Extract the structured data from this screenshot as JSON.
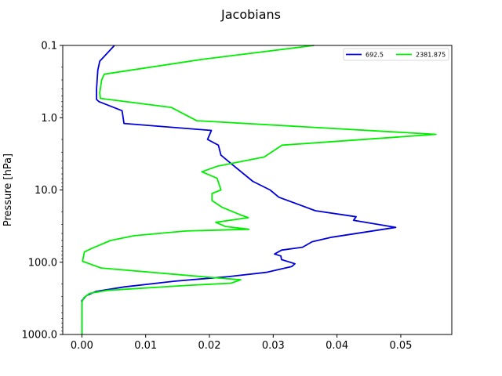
{
  "chart_data": {
    "type": "line",
    "title": "Jacobians",
    "xlabel": "",
    "ylabel": "Pressure [hPa]",
    "xlim": [
      -0.003,
      0.058
    ],
    "ylim": [
      1000.0,
      0.1
    ],
    "yscale": "log",
    "y_inverted": true,
    "grid": false,
    "legend_placement": "top-right",
    "x_ticks": [
      0.0,
      0.01,
      0.02,
      0.03,
      0.04,
      0.05
    ],
    "x_tick_labels": [
      "0.00",
      "0.01",
      "0.02",
      "0.03",
      "0.04",
      "0.05"
    ],
    "y_ticks": [
      0.1,
      1.0,
      10.0,
      100.0,
      1000.0
    ],
    "y_tick_labels": [
      "0.1",
      "1.0",
      "10.0",
      "100.0",
      "1000.0"
    ],
    "series": [
      {
        "name": "692.5",
        "color": "#0000dd",
        "points": [
          [
            0.0051,
            0.1
          ],
          [
            0.0028,
            0.165
          ],
          [
            0.0025,
            0.22
          ],
          [
            0.0023,
            0.4
          ],
          [
            0.0023,
            0.56
          ],
          [
            0.0027,
            0.6
          ],
          [
            0.0063,
            0.8
          ],
          [
            0.0066,
            1.2
          ],
          [
            0.0203,
            1.5
          ],
          [
            0.0197,
            2.0
          ],
          [
            0.0214,
            2.4
          ],
          [
            0.0218,
            3.3
          ],
          [
            0.0235,
            4.4
          ],
          [
            0.0268,
            7.6
          ],
          [
            0.0295,
            10.0
          ],
          [
            0.0309,
            12.6
          ],
          [
            0.0366,
            19.4
          ],
          [
            0.043,
            23.5
          ],
          [
            0.0426,
            26.3
          ],
          [
            0.0492,
            33.0
          ],
          [
            0.0392,
            45.0
          ],
          [
            0.0361,
            52.0
          ],
          [
            0.0346,
            62.0
          ],
          [
            0.0313,
            68.0
          ],
          [
            0.0302,
            77.0
          ],
          [
            0.0312,
            82.0
          ],
          [
            0.0313,
            92.0
          ],
          [
            0.0334,
            105.0
          ],
          [
            0.0329,
            115.0
          ],
          [
            0.0289,
            138.0
          ],
          [
            0.023,
            158.0
          ],
          [
            0.0145,
            183.0
          ],
          [
            0.0066,
            220.0
          ],
          [
            0.0022,
            254.0
          ],
          [
            0.0007,
            290.0
          ],
          [
            0.0,
            340.0
          ],
          [
            0.0,
            1000.0
          ]
        ]
      },
      {
        "name": "2381.875",
        "color": "#00ee00",
        "points": [
          [
            0.0364,
            0.1
          ],
          [
            0.019,
            0.155
          ],
          [
            0.0035,
            0.25
          ],
          [
            0.0031,
            0.3
          ],
          [
            0.0028,
            0.45
          ],
          [
            0.0029,
            0.54
          ],
          [
            0.014,
            0.72
          ],
          [
            0.018,
            1.1
          ],
          [
            0.0555,
            1.7
          ],
          [
            0.0314,
            2.4
          ],
          [
            0.0286,
            3.5
          ],
          [
            0.0212,
            4.7
          ],
          [
            0.0188,
            5.6
          ],
          [
            0.0212,
            6.9
          ],
          [
            0.0218,
            10.0
          ],
          [
            0.0204,
            11.2
          ],
          [
            0.0204,
            14.0
          ],
          [
            0.022,
            17.4
          ],
          [
            0.0248,
            22.0
          ],
          [
            0.0261,
            24.2
          ],
          [
            0.021,
            28.0
          ],
          [
            0.0225,
            32.0
          ],
          [
            0.0262,
            35.0
          ],
          [
            0.0163,
            37.0
          ],
          [
            0.0082,
            43.0
          ],
          [
            0.0045,
            50.0
          ],
          [
            0.0016,
            64.0
          ],
          [
            0.0004,
            72.0
          ],
          [
            0.0001,
            97.0
          ],
          [
            0.003,
            120.0
          ],
          [
            0.0195,
            160.0
          ],
          [
            0.0249,
            175.0
          ],
          [
            0.0234,
            195.0
          ],
          [
            0.0162,
            210.0
          ],
          [
            0.004,
            245.0
          ],
          [
            0.0012,
            270.0
          ],
          [
            0.0003,
            310.0
          ],
          [
            0.0,
            360.0
          ],
          [
            0.0,
            1000.0
          ]
        ]
      }
    ]
  }
}
